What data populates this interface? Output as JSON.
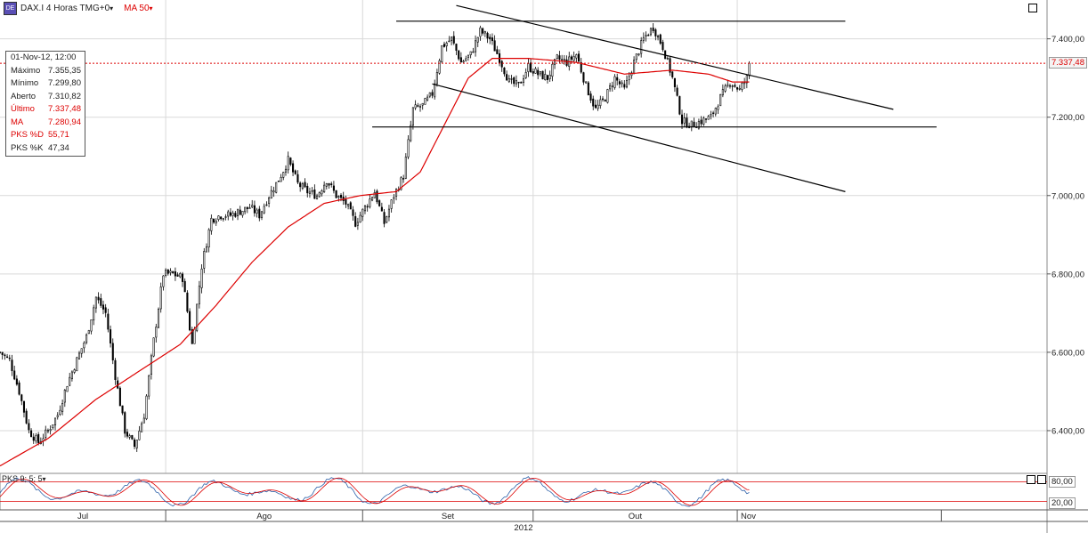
{
  "header": {
    "symbol_icon": "dax-icon",
    "symbol_icon_text": "DE",
    "symbol_label": "DAX.I 4 Horas TMG+0",
    "ma_label": "MA 50",
    "caret": "▾"
  },
  "data_window": {
    "date": "01-Nov-12, 12:00",
    "rows": [
      {
        "label": "Máximo",
        "value": "7.355,35",
        "color": "#222222"
      },
      {
        "label": "Mínimo",
        "value": "7.299,80",
        "color": "#222222"
      },
      {
        "label": "Aberto",
        "value": "7.310,82",
        "color": "#222222"
      },
      {
        "label": "Último",
        "value": "7.337,48",
        "color": "#dd0000"
      },
      {
        "label": "MA",
        "value": "7.280,94",
        "color": "#dd0000"
      },
      {
        "label": "PKS %D",
        "value": "55,71",
        "color": "#dd0000"
      },
      {
        "label": "PKS %K",
        "value": "47,34",
        "color": "#222222"
      }
    ]
  },
  "last_price_label": "7.337,48",
  "stoch_label": "PKS 9; 5; 5",
  "colors": {
    "candle": "#000000",
    "ma": "#dd0000",
    "grid": "#d9d9d9",
    "last_line": "#dd0000"
  },
  "chart_data": {
    "type": "candlestick",
    "price_axis": {
      "min": 6300,
      "max": 7490,
      "ticks": [
        {
          "value": 6400,
          "label": "6.400,00"
        },
        {
          "value": 6600,
          "label": "6.600,00"
        },
        {
          "value": 6800,
          "label": "6.800,00"
        },
        {
          "value": 7000,
          "label": "7.000,00"
        },
        {
          "value": 7200,
          "label": "7.200,00"
        },
        {
          "value": 7400,
          "label": "7.400,00"
        }
      ]
    },
    "last_price": 7337.48,
    "bar_count": 240,
    "close_keypoints": [
      [
        0,
        6600
      ],
      [
        4,
        6580
      ],
      [
        8,
        6500
      ],
      [
        12,
        6400
      ],
      [
        16,
        6370
      ],
      [
        20,
        6400
      ],
      [
        24,
        6440
      ],
      [
        28,
        6520
      ],
      [
        32,
        6580
      ],
      [
        36,
        6640
      ],
      [
        40,
        6740
      ],
      [
        44,
        6700
      ],
      [
        48,
        6540
      ],
      [
        52,
        6400
      ],
      [
        56,
        6360
      ],
      [
        60,
        6440
      ],
      [
        64,
        6630
      ],
      [
        68,
        6800
      ],
      [
        72,
        6800
      ],
      [
        76,
        6790
      ],
      [
        80,
        6620
      ],
      [
        84,
        6820
      ],
      [
        88,
        6940
      ],
      [
        92,
        6950
      ],
      [
        96,
        6950
      ],
      [
        100,
        6960
      ],
      [
        104,
        6970
      ],
      [
        108,
        6950
      ],
      [
        112,
        7000
      ],
      [
        116,
        7040
      ],
      [
        120,
        7090
      ],
      [
        124,
        7030
      ],
      [
        128,
        7010
      ],
      [
        132,
        7000
      ],
      [
        136,
        7040
      ],
      [
        140,
        7000
      ],
      [
        144,
        6980
      ],
      [
        148,
        6930
      ],
      [
        152,
        6970
      ],
      [
        156,
        7010
      ],
      [
        160,
        6930
      ],
      [
        164,
        7000
      ],
      [
        168,
        7050
      ],
      [
        172,
        7220
      ],
      [
        176,
        7230
      ],
      [
        180,
        7260
      ],
      [
        184,
        7380
      ],
      [
        188,
        7400
      ],
      [
        192,
        7340
      ],
      [
        196,
        7360
      ],
      [
        200,
        7420
      ],
      [
        204,
        7400
      ],
      [
        208,
        7350
      ],
      [
        212,
        7290
      ],
      [
        216,
        7280
      ],
      [
        220,
        7330
      ],
      [
        224,
        7310
      ],
      [
        228,
        7300
      ],
      [
        232,
        7350
      ],
      [
        236,
        7340
      ],
      [
        240,
        7360
      ],
      [
        244,
        7280
      ],
      [
        248,
        7220
      ],
      [
        252,
        7250
      ],
      [
        256,
        7300
      ],
      [
        260,
        7270
      ],
      [
        264,
        7340
      ],
      [
        268,
        7400
      ],
      [
        272,
        7430
      ],
      [
        276,
        7380
      ],
      [
        280,
        7300
      ],
      [
        284,
        7190
      ],
      [
        288,
        7180
      ],
      [
        292,
        7190
      ],
      [
        296,
        7200
      ],
      [
        300,
        7250
      ],
      [
        304,
        7290
      ],
      [
        308,
        7270
      ],
      [
        312,
        7310
      ]
    ],
    "ma_keypoints": [
      [
        0,
        6310
      ],
      [
        20,
        6380
      ],
      [
        40,
        6480
      ],
      [
        60,
        6560
      ],
      [
        75,
        6620
      ],
      [
        90,
        6720
      ],
      [
        105,
        6830
      ],
      [
        120,
        6920
      ],
      [
        135,
        6980
      ],
      [
        150,
        7000
      ],
      [
        165,
        7010
      ],
      [
        175,
        7060
      ],
      [
        185,
        7180
      ],
      [
        195,
        7300
      ],
      [
        205,
        7350
      ],
      [
        220,
        7350
      ],
      [
        240,
        7340
      ],
      [
        260,
        7310
      ],
      [
        280,
        7320
      ],
      [
        295,
        7310
      ],
      [
        305,
        7290
      ],
      [
        312,
        7290
      ]
    ],
    "trendlines": [
      {
        "name": "resistance-horizontal",
        "from": [
          165,
          7445
        ],
        "to": [
          352,
          7445
        ]
      },
      {
        "name": "support-horizontal",
        "from": [
          155,
          7175
        ],
        "to": [
          390,
          7175
        ]
      },
      {
        "name": "channel-upper",
        "from": [
          190,
          7485
        ],
        "to": [
          372,
          7220
        ]
      },
      {
        "name": "channel-lower",
        "from": [
          180,
          7285
        ],
        "to": [
          352,
          7010
        ]
      }
    ],
    "time_axis": {
      "months": [
        {
          "label": "Jul",
          "start": 0,
          "end": 69
        },
        {
          "label": "Ago",
          "start": 69,
          "end": 151
        },
        {
          "label": "Set",
          "start": 151,
          "end": 222
        },
        {
          "label": "Out",
          "start": 222,
          "end": 307
        },
        {
          "label": "Nov",
          "start": 307,
          "end": 392
        }
      ],
      "year": "2012",
      "domain": [
        0,
        436
      ]
    },
    "stochastic": {
      "levels": [
        80,
        20
      ],
      "level_labels": [
        "80,00",
        "20,00"
      ],
      "k_last": 47.34,
      "d_last": 55.71
    }
  }
}
